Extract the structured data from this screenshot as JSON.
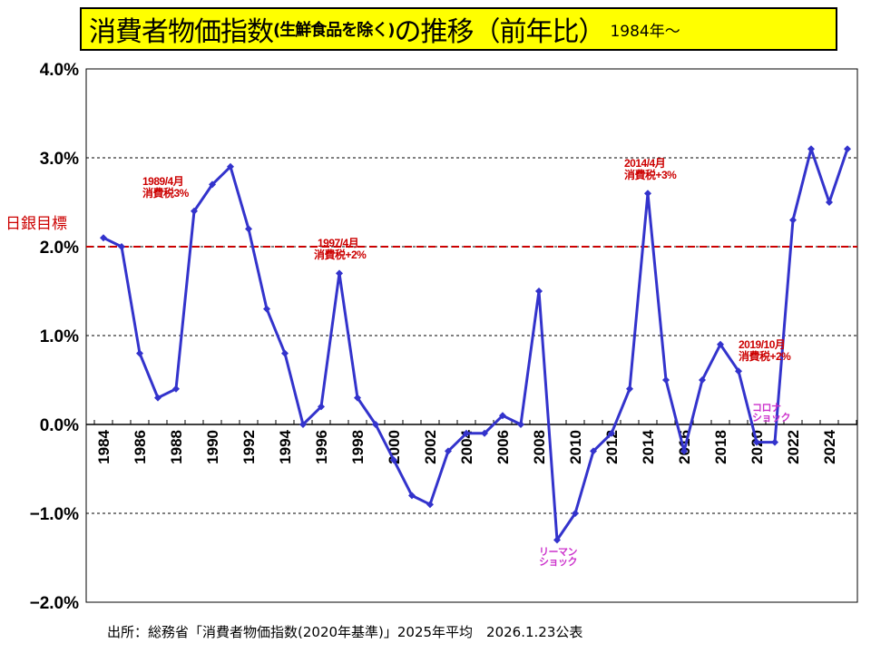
{
  "title": {
    "main_a": "消費者物価指数",
    "main_b": "(生鮮食品を除く)",
    "main_c": "の推移（前年比）",
    "since": "1984年～"
  },
  "target_label": "日銀目標",
  "source": "出所：総務省「消費者物価指数(2020年基準)」2025年平均　2026.1.23公表",
  "annotations": {
    "a1989_1": "1989/4月",
    "a1989_2": "消費税3%",
    "a1997_1": "1997/4月",
    "a1997_2": "消費税+2%",
    "a2014_1": "2014/4月",
    "a2014_2": "消費税+3%",
    "a2019_1": "2019/10月",
    "a2019_2": "消費税+2%",
    "lehman_1": "リーマン",
    "lehman_2": "ショック",
    "corona_1": "コロナ",
    "corona_2": "ショック"
  },
  "chart_data": {
    "type": "line",
    "title": "消費者物価指数(生鮮食品を除く)の推移（前年比）1984年～",
    "xlabel": "",
    "ylabel": "",
    "ylim": [
      -2.0,
      4.0
    ],
    "yticks": [
      "4.0%",
      "3.0%",
      "2.0%",
      "1.0%",
      "0.0%",
      "−1.0%",
      "−2.0%"
    ],
    "ytick_values": [
      4,
      3,
      2,
      1,
      0,
      -1,
      -2
    ],
    "xtick_labels": [
      "1984",
      "1986",
      "1988",
      "1990",
      "1992",
      "1994",
      "1996",
      "1998",
      "2000",
      "2002",
      "2004",
      "2006",
      "2008",
      "2010",
      "2012",
      "2014",
      "2016",
      "2018",
      "2020",
      "2022",
      "2024"
    ],
    "target_line": 2.0,
    "series_color": "#3333cc",
    "target_color": "#cc0000",
    "x": [
      1984,
      1985,
      1986,
      1987,
      1988,
      1989,
      1990,
      1991,
      1992,
      1993,
      1994,
      1995,
      1996,
      1997,
      1998,
      1999,
      2000,
      2001,
      2002,
      2003,
      2004,
      2005,
      2006,
      2007,
      2008,
      2009,
      2010,
      2011,
      2012,
      2013,
      2014,
      2015,
      2016,
      2017,
      2018,
      2019,
      2020,
      2021,
      2022,
      2023,
      2024,
      2025
    ],
    "values": [
      2.1,
      2.0,
      0.8,
      0.3,
      0.4,
      2.4,
      2.7,
      2.9,
      2.2,
      1.3,
      0.8,
      0.0,
      0.2,
      1.7,
      0.3,
      0.0,
      -0.4,
      -0.8,
      -0.9,
      -0.3,
      -0.1,
      -0.1,
      0.1,
      0.0,
      1.5,
      -1.3,
      -1.0,
      -0.3,
      -0.1,
      0.4,
      2.6,
      0.5,
      -0.3,
      0.5,
      0.9,
      0.6,
      -0.2,
      -0.2,
      2.3,
      3.1,
      2.5,
      3.1
    ]
  }
}
